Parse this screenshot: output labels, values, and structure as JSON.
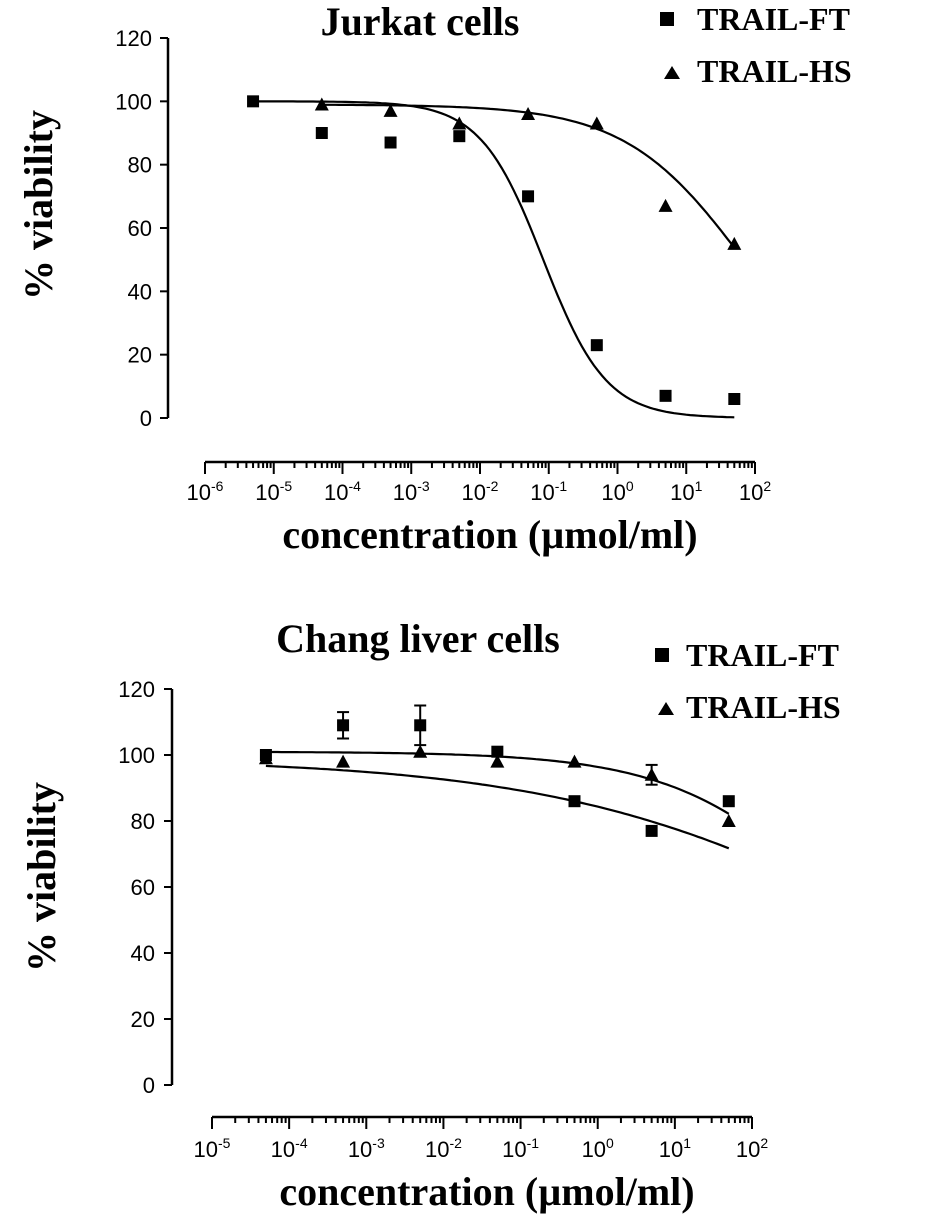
{
  "chart_data": [
    {
      "type": "scatter",
      "title": "Jurkat cells",
      "xlabel": "concentration (µmol/ml)",
      "ylabel": "% viability",
      "x_scale": "log",
      "xlim": [
        1e-06,
        100
      ],
      "ylim": [
        0,
        120
      ],
      "y_ticks": [
        "0",
        "20",
        "40",
        "60",
        "80",
        "100",
        "120"
      ],
      "x_ticks": [
        {
          "base": "10",
          "exp": "-6"
        },
        {
          "base": "10",
          "exp": "-5"
        },
        {
          "base": "10",
          "exp": "-4"
        },
        {
          "base": "10",
          "exp": "-3"
        },
        {
          "base": "10",
          "exp": "-2"
        },
        {
          "base": "10",
          "exp": "-1"
        },
        {
          "base": "10",
          "exp": "0"
        },
        {
          "base": "10",
          "exp": "1"
        },
        {
          "base": "10",
          "exp": "2"
        }
      ],
      "legend": "top-right",
      "series": [
        {
          "name": "TRAIL-FT",
          "marker": "square",
          "points": [
            {
              "x": 5e-06,
              "y": 100
            },
            {
              "x": 5e-05,
              "y": 90
            },
            {
              "x": 0.0005,
              "y": 87
            },
            {
              "x": 0.005,
              "y": 89
            },
            {
              "x": 0.05,
              "y": 70
            },
            {
              "x": 0.5,
              "y": 23
            },
            {
              "x": 5,
              "y": 7
            },
            {
              "x": 50,
              "y": 6
            }
          ],
          "fit": {
            "top": 100,
            "bottom": 0,
            "log_ec50": -1.08,
            "hill": 0.95
          }
        },
        {
          "name": "TRAIL-HS",
          "marker": "triangle",
          "points": [
            {
              "x": 5e-05,
              "y": 99
            },
            {
              "x": 0.0005,
              "y": 97
            },
            {
              "x": 0.005,
              "y": 93
            },
            {
              "x": 0.05,
              "y": 96
            },
            {
              "x": 0.5,
              "y": 93
            },
            {
              "x": 5,
              "y": 67
            },
            {
              "x": 50,
              "y": 55
            }
          ],
          "fit": {
            "top": 99,
            "bottom": 0,
            "log_ec50": 1.85,
            "hill": 0.5
          }
        }
      ]
    },
    {
      "type": "scatter",
      "title": "Chang liver cells",
      "xlabel": "concentration (µmol/ml)",
      "ylabel": "% viability",
      "x_scale": "log",
      "xlim": [
        1e-05,
        100
      ],
      "ylim": [
        0,
        120
      ],
      "y_ticks": [
        "0",
        "20",
        "40",
        "60",
        "80",
        "100",
        "120"
      ],
      "x_ticks": [
        {
          "base": "10",
          "exp": "-5"
        },
        {
          "base": "10",
          "exp": "-4"
        },
        {
          "base": "10",
          "exp": "-3"
        },
        {
          "base": "10",
          "exp": "-2"
        },
        {
          "base": "10",
          "exp": "-1"
        },
        {
          "base": "10",
          "exp": "0"
        },
        {
          "base": "10",
          "exp": "1"
        },
        {
          "base": "10",
          "exp": "2"
        }
      ],
      "legend": "top-right",
      "series": [
        {
          "name": "TRAIL-FT",
          "marker": "square",
          "points": [
            {
              "x": 5e-05,
              "y": 100
            },
            {
              "x": 0.0005,
              "y": 109,
              "err": 4
            },
            {
              "x": 0.005,
              "y": 109,
              "err": 6
            },
            {
              "x": 0.05,
              "y": 101
            },
            {
              "x": 0.5,
              "y": 86
            },
            {
              "x": 5,
              "y": 77
            },
            {
              "x": 50,
              "y": 86
            }
          ],
          "fit": {
            "top": 99,
            "bottom": 0,
            "log_ec50": 3.8,
            "hill": 0.2
          }
        },
        {
          "name": "TRAIL-HS",
          "marker": "triangle",
          "points": [
            {
              "x": 5e-05,
              "y": 99
            },
            {
              "x": 0.0005,
              "y": 98
            },
            {
              "x": 0.005,
              "y": 101
            },
            {
              "x": 0.05,
              "y": 98
            },
            {
              "x": 0.5,
              "y": 98
            },
            {
              "x": 5,
              "y": 94,
              "err": 3
            },
            {
              "x": 50,
              "y": 80
            }
          ],
          "fit": {
            "top": 101,
            "bottom": 0,
            "log_ec50": 3.3,
            "hill": 0.4
          }
        }
      ]
    }
  ]
}
